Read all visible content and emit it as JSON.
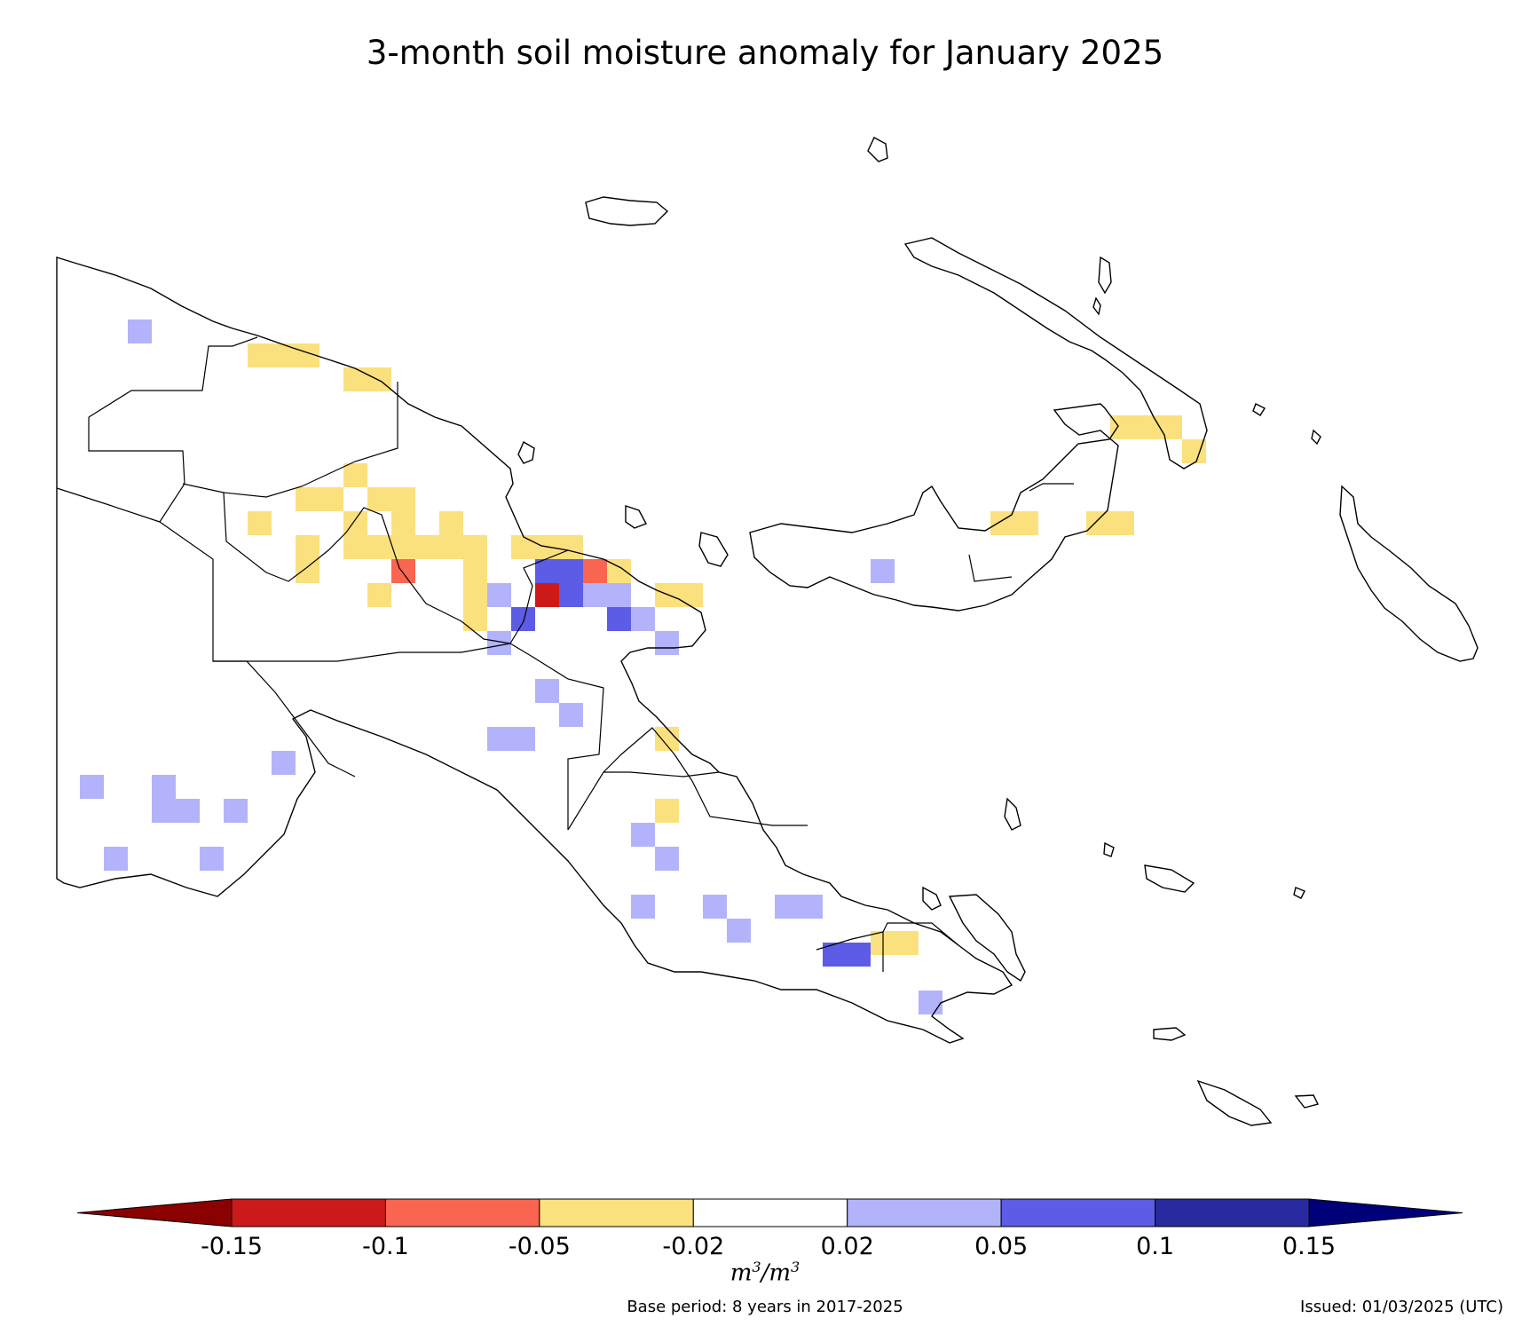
{
  "title": "3-month soil moisture anomaly for January 2025",
  "colorbar": {
    "ticks": [
      "-0.15",
      "-0.1",
      "-0.05",
      "-0.02",
      "0.02",
      "0.05",
      "0.1",
      "0.15"
    ],
    "colors": {
      "below_min": "#8b0000",
      "bin_-0.15_-0.1": "#cc1a1a",
      "bin_-0.1_-0.05": "#f96550",
      "bin_-0.05_-0.02": "#fbe07e",
      "bin_-0.02_0.02": "#ffffff",
      "bin_0.02_0.05": "#b3b3fb",
      "bin_0.05_0.1": "#5c5ce6",
      "bin_0.1_0.15": "#2a2aa0",
      "above_max": "#000078"
    },
    "units_base": "m",
    "units_exp": "3"
  },
  "base_period": "Base period: 8 years in 2017-2025",
  "issued": "Issued: 01/03/2025 (UTC)"
}
